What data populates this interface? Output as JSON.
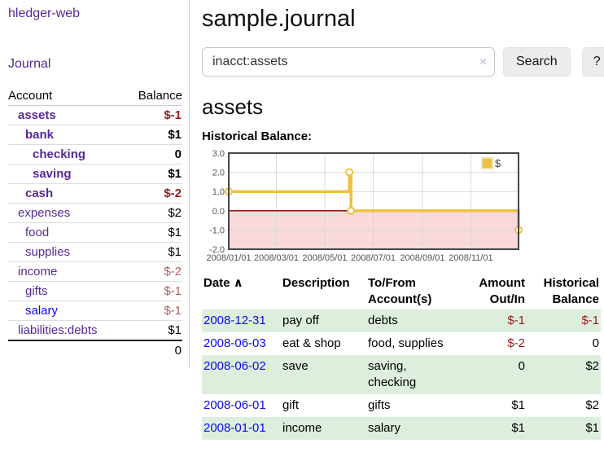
{
  "app": {
    "brand": "hledger-web"
  },
  "colors": {
    "purple": "#572996",
    "blue": "#0b0bea",
    "neg": "#971a1a",
    "neg_light": "#b15d5d",
    "stripe": "#ddeedd",
    "gold": "#edc240",
    "gold_border": "#f2e3af",
    "pink": "#f9d9d9",
    "zero": "#8b1414",
    "grid": "#d9d9d9",
    "chart_border": "#454545",
    "chart_text": "#545454"
  },
  "sidebar": {
    "journal_label": "Journal",
    "table": {
      "headers": [
        "Account",
        "Balance"
      ],
      "rows": [
        {
          "name": "assets",
          "depth": 1,
          "bold": true,
          "name_color": "purple",
          "balance": "$-1",
          "balance_color": "neg"
        },
        {
          "name": "bank",
          "depth": 2,
          "bold": true,
          "name_color": "purple",
          "balance": "$1",
          "balance_color": "pos"
        },
        {
          "name": "checking",
          "depth": 3,
          "bold": true,
          "name_color": "purple",
          "balance": "0",
          "balance_color": "pos"
        },
        {
          "name": "saving",
          "depth": 3,
          "bold": true,
          "name_color": "purple",
          "balance": "$1",
          "balance_color": "pos"
        },
        {
          "name": "cash",
          "depth": 2,
          "bold": true,
          "name_color": "purple",
          "balance": "$-2",
          "balance_color": "neg"
        },
        {
          "name": "expenses",
          "depth": 1,
          "bold": false,
          "name_color": "purple",
          "balance": "$2",
          "balance_color": "pos"
        },
        {
          "name": "food",
          "depth": 2,
          "bold": false,
          "name_color": "purple",
          "balance": "$1",
          "balance_color": "pos"
        },
        {
          "name": "supplies",
          "depth": 2,
          "bold": false,
          "name_color": "purple",
          "balance": "$1",
          "balance_color": "pos"
        },
        {
          "name": "income",
          "depth": 1,
          "bold": false,
          "name_color": "purple",
          "balance": "$-2",
          "balance_color": "negLight"
        },
        {
          "name": "gifts",
          "depth": 2,
          "bold": false,
          "name_color": "purple",
          "balance": "$-1",
          "balance_color": "negLight"
        },
        {
          "name": "salary",
          "depth": 2,
          "bold": false,
          "name_color": "blue",
          "balance": "$-1",
          "balance_color": "negLight"
        },
        {
          "name": "liabilities:debts",
          "depth": 1,
          "bold": false,
          "name_color": "purple",
          "balance": "$1",
          "balance_color": "pos"
        }
      ],
      "total": "0"
    }
  },
  "main": {
    "title": "sample.journal",
    "search": {
      "value": "inacct:assets",
      "clear_glyph": "×",
      "button_label": "Search",
      "help_label": "?"
    },
    "account_heading": "assets",
    "chart_label": "Historical Balance:",
    "register": {
      "headers": [
        {
          "label": "Date",
          "sort": "∧"
        },
        {
          "label": "Description"
        },
        {
          "label": "To/From",
          "label2": "Account(s)"
        },
        {
          "label": "Amount",
          "label2": "Out/In",
          "align": "right"
        },
        {
          "label": "Historical",
          "label2": "Balance",
          "align": "right"
        }
      ],
      "rows": [
        {
          "date": "2008-12-31",
          "description": "pay off",
          "accounts": "debts",
          "amount": "$-1",
          "amount_color": "neg",
          "balance": "$-1",
          "balance_color": "neg"
        },
        {
          "date": "2008-06-03",
          "description": "eat & shop",
          "accounts": "food, supplies",
          "amount": "$-2",
          "amount_color": "neg",
          "balance": "0",
          "balance_color": "pos"
        },
        {
          "date": "2008-06-02",
          "description": "save",
          "accounts": "saving, checking",
          "amount": "0",
          "amount_color": "pos",
          "balance": "$2",
          "balance_color": "pos"
        },
        {
          "date": "2008-06-01",
          "description": "gift",
          "accounts": "gifts",
          "amount": "$1",
          "amount_color": "pos",
          "balance": "$2",
          "balance_color": "pos"
        },
        {
          "date": "2008-01-01",
          "description": "income",
          "accounts": "salary",
          "amount": "$1",
          "amount_color": "pos",
          "balance": "$1",
          "balance_color": "pos"
        }
      ]
    }
  },
  "chart_data": {
    "type": "line",
    "step": true,
    "legend": "$",
    "x": [
      "2008-01-01",
      "2008-06-01",
      "2008-06-02",
      "2008-06-03",
      "2008-12-31"
    ],
    "values": [
      1,
      2,
      2,
      0,
      -1
    ],
    "xrange": [
      "2008-01-01",
      "2008-12-31"
    ],
    "xtick_labels": [
      "2008/01/01",
      "2008/03/01",
      "2008/05/01",
      "2008/07/01",
      "2008/09/01",
      "2008/11/01"
    ],
    "xticks": [
      "2008-01-01",
      "2008-03-01",
      "2008-05-01",
      "2008-07-01",
      "2008-09-01",
      "2008-11-01"
    ],
    "ytick_labels": [
      "3.0",
      "2.0",
      "1.0",
      "0.0",
      "-1.0",
      "-2.0"
    ],
    "yticks": [
      3,
      2,
      1,
      0,
      -1,
      -2
    ],
    "ylim": [
      -2,
      3
    ],
    "negative_region_shaded": true,
    "grid": true,
    "legend_position": "top-right"
  }
}
